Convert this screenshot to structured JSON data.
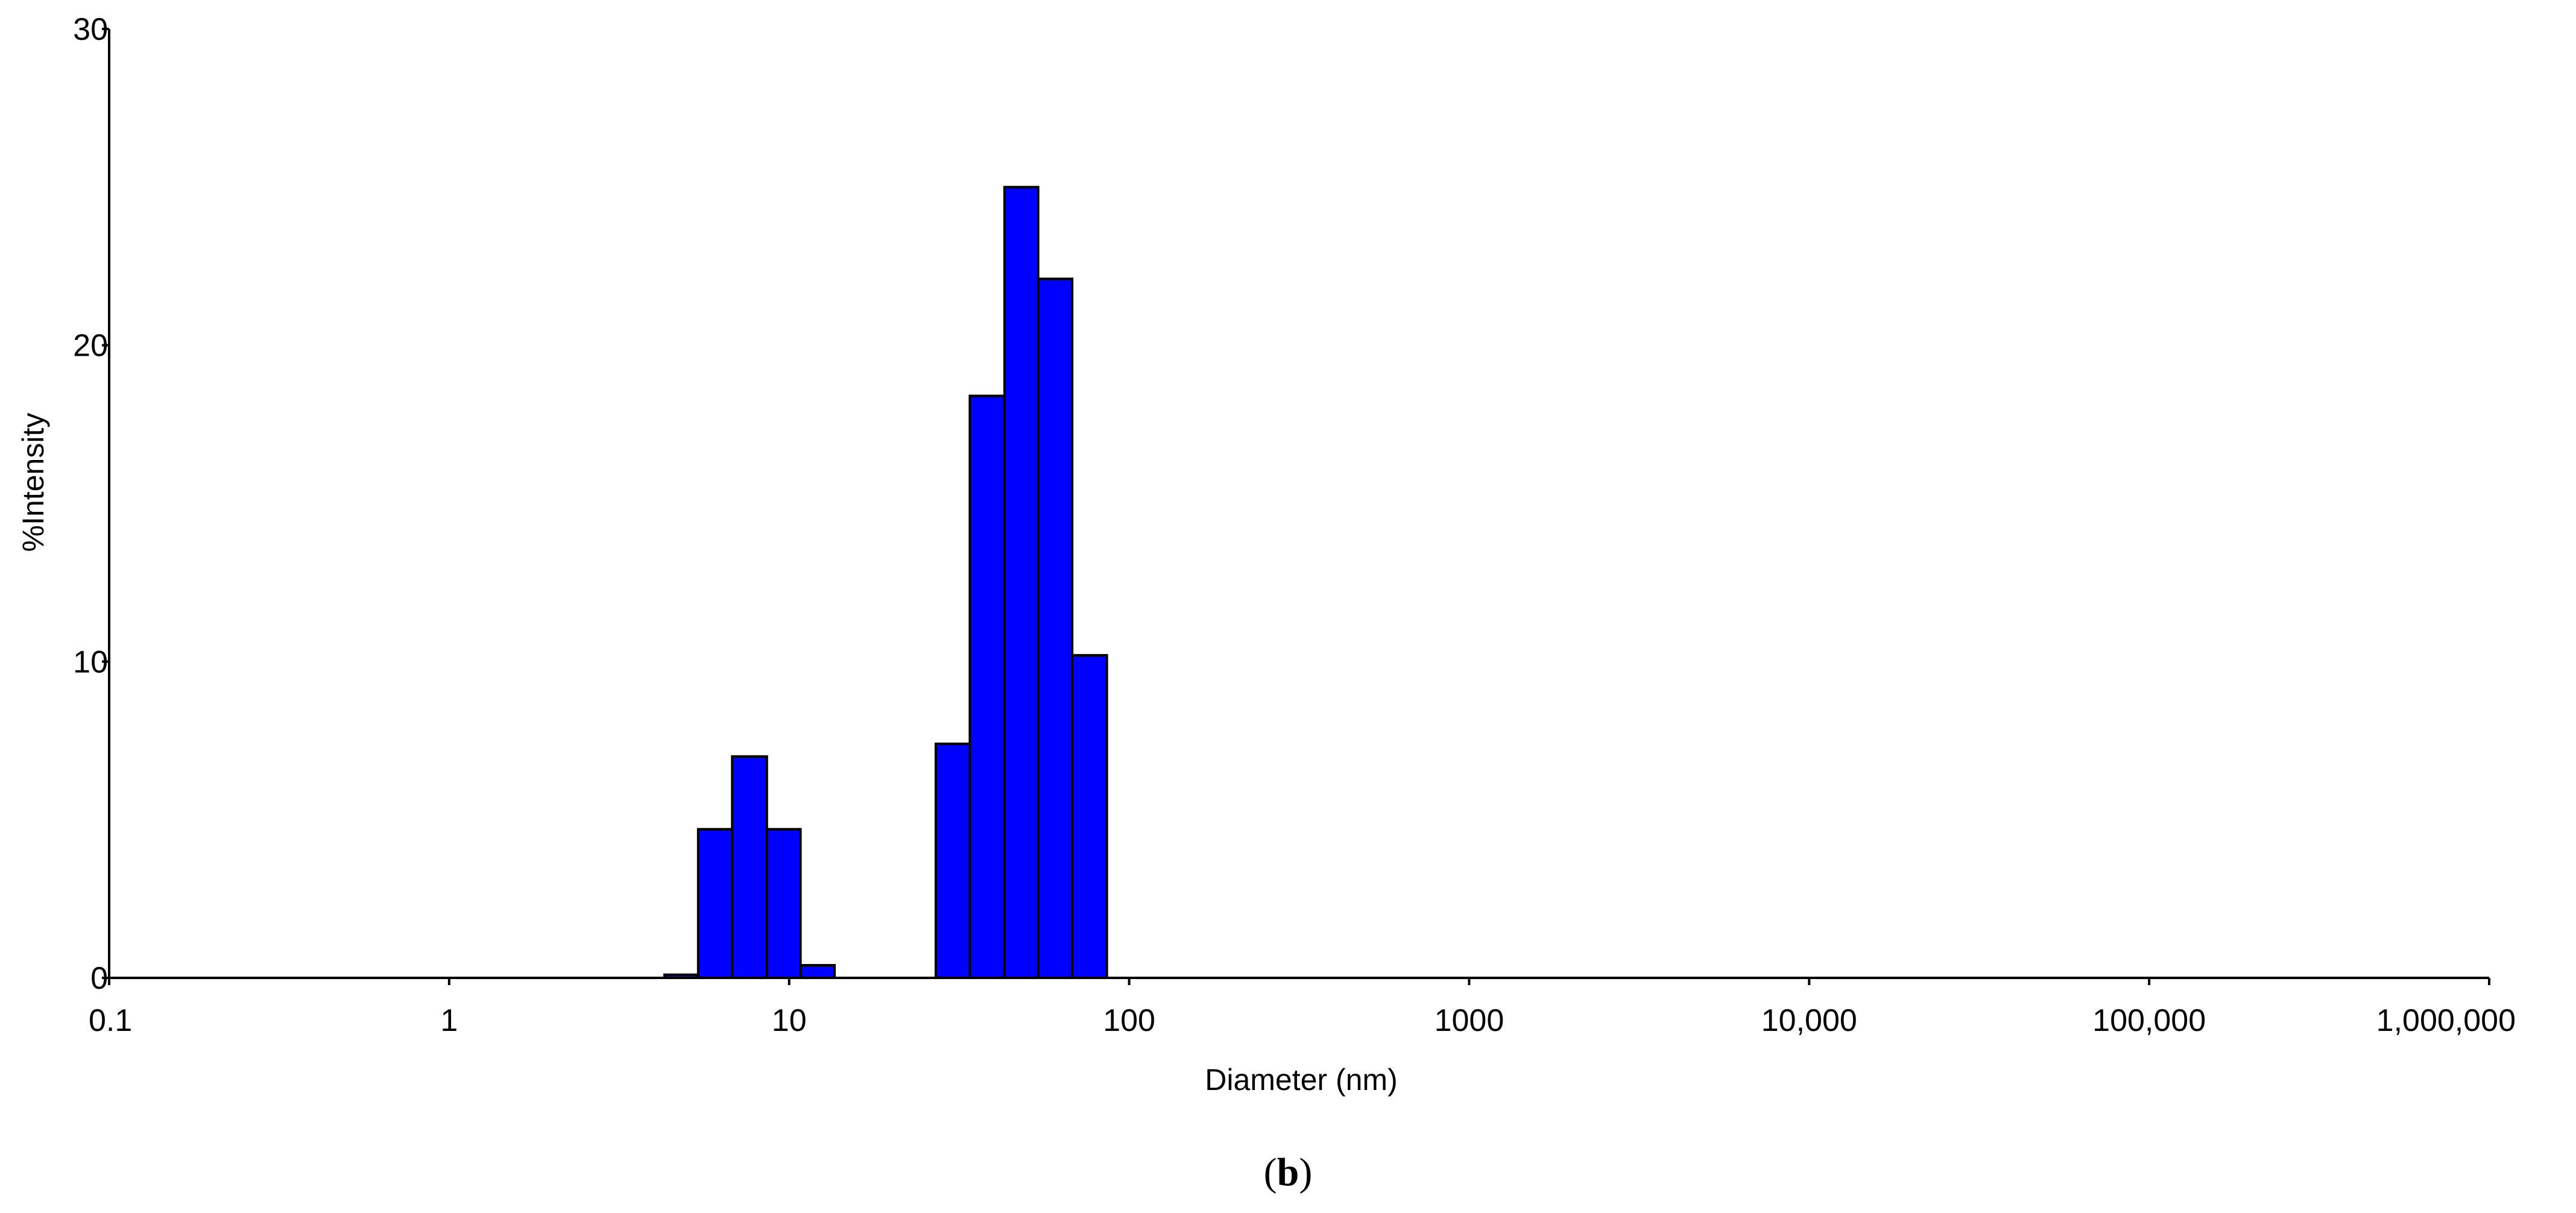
{
  "chart_data": {
    "type": "bar",
    "title": "",
    "xlabel": "Diameter (nm)",
    "ylabel": "%Intensity",
    "xscale": "log",
    "xlim": [
      0.1,
      1000000
    ],
    "ylim": [
      0,
      30
    ],
    "grid": false,
    "legend": "none",
    "bar_color": "#0000FF",
    "bar_edge_color": "#000000",
    "x_ticks": [
      {
        "value": 0.1,
        "label": "0.1"
      },
      {
        "value": 1,
        "label": "1"
      },
      {
        "value": 10,
        "label": "10"
      },
      {
        "value": 100,
        "label": "100"
      },
      {
        "value": 1000,
        "label": "1000"
      },
      {
        "value": 10000,
        "label": "10,000"
      },
      {
        "value": 100000,
        "label": "100,000"
      },
      {
        "value": 1000000,
        "label": "1,000,000"
      }
    ],
    "y_ticks": [
      {
        "value": 0,
        "label": "0"
      },
      {
        "value": 10,
        "label": "10"
      },
      {
        "value": 20,
        "label": "20"
      },
      {
        "value": 30,
        "label": "30"
      }
    ],
    "bins": [
      {
        "x_start": 4.3,
        "x_end": 5.4,
        "value": 0.1
      },
      {
        "x_start": 5.4,
        "x_end": 6.8,
        "value": 4.7
      },
      {
        "x_start": 6.8,
        "x_end": 8.6,
        "value": 7.0
      },
      {
        "x_start": 8.6,
        "x_end": 10.8,
        "value": 4.7
      },
      {
        "x_start": 10.8,
        "x_end": 13.6,
        "value": 0.4
      },
      {
        "x_start": 27.0,
        "x_end": 34.0,
        "value": 7.4
      },
      {
        "x_start": 34.0,
        "x_end": 43.0,
        "value": 18.4
      },
      {
        "x_start": 43.0,
        "x_end": 54.0,
        "value": 25.0
      },
      {
        "x_start": 54.0,
        "x_end": 68.0,
        "value": 22.1
      },
      {
        "x_start": 68.0,
        "x_end": 86.0,
        "value": 10.2
      }
    ]
  },
  "caption": {
    "open": "(",
    "letter": "b",
    "close": ")"
  }
}
